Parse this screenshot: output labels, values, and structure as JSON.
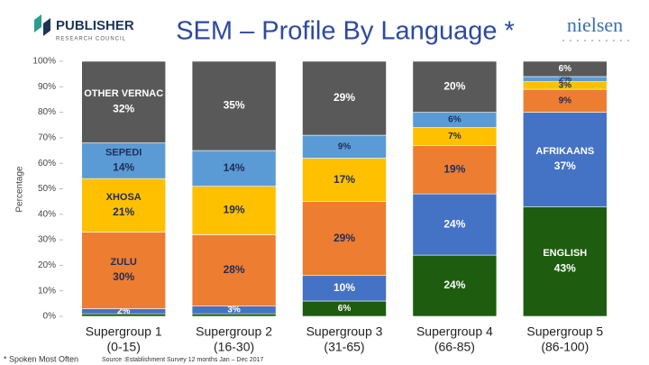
{
  "header": {
    "logo_name": "PUBLISHER",
    "logo_sub": "RESEARCH COUNCIL",
    "brand": "nielsen"
  },
  "chart_data": {
    "type": "stacked_bar",
    "title": "SEM – Profile By Language *",
    "y_label": "Percentage",
    "categories": [
      "Supergroup 1",
      "Supergroup 2",
      "Supergroup 3",
      "Supergroup 4",
      "Supergroup 5"
    ],
    "category_ranges": [
      "(0-15)",
      "(16-30)",
      "(31-65)",
      "(66-85)",
      "(86-100)"
    ],
    "ylim": [
      0,
      100
    ],
    "yticks": [
      {
        "value": 0,
        "label": "0%"
      },
      {
        "value": 10,
        "label": "10%"
      },
      {
        "value": 20,
        "label": "20%"
      },
      {
        "value": 30,
        "label": "30%"
      },
      {
        "value": 40,
        "label": "40%"
      },
      {
        "value": 50,
        "label": "50%"
      },
      {
        "value": 60,
        "label": "60%"
      },
      {
        "value": 70,
        "label": "70%"
      },
      {
        "value": 80,
        "label": "80%"
      },
      {
        "value": 90,
        "label": "90%"
      },
      {
        "value": 100,
        "label": "100%"
      }
    ],
    "series": [
      {
        "color": "#1e5c0f",
        "values": [
          1,
          1,
          6,
          24,
          43
        ],
        "value_labels": [
          null,
          null,
          "6%",
          "24%",
          "43%"
        ],
        "segment_labels": [
          null,
          null,
          null,
          null,
          "ENGLISH"
        ]
      },
      {
        "color": "#4472c4",
        "values": [
          2,
          3,
          10,
          24,
          37
        ],
        "value_labels": [
          "2%",
          "3%",
          "10%",
          "24%",
          "37%"
        ],
        "segment_labels": [
          null,
          null,
          null,
          null,
          "AFRIKAANS"
        ]
      },
      {
        "color": "#ed7d31",
        "values": [
          30,
          28,
          29,
          19,
          9
        ],
        "value_labels": [
          "30%",
          "28%",
          "29%",
          "19%",
          "9%"
        ],
        "segment_labels": [
          "ZULU",
          null,
          null,
          null,
          null
        ]
      },
      {
        "color": "#ffc000",
        "values": [
          21,
          19,
          17,
          7,
          3
        ],
        "value_labels": [
          "21%",
          "19%",
          "17%",
          "7%",
          "3%"
        ],
        "segment_labels": [
          "XHOSA",
          null,
          null,
          null,
          null
        ]
      },
      {
        "color": "#5b9bd5",
        "values": [
          14,
          14,
          9,
          6,
          2
        ],
        "value_labels": [
          "14%",
          "14%",
          "9%",
          "6%",
          "2%"
        ],
        "segment_labels": [
          "SEPEDI",
          null,
          null,
          null,
          null
        ]
      },
      {
        "color": "#595959",
        "values": [
          32,
          35,
          29,
          20,
          6
        ],
        "value_labels": [
          "32%",
          "35%",
          "29%",
          "20%",
          "6%"
        ],
        "segment_labels": [
          "OTHER VERNAC",
          null,
          null,
          null,
          null
        ]
      }
    ]
  },
  "footer": {
    "note": "* Spoken Most Often",
    "source": "Source :Establishment Survey 12 months Jan – Dec 2017"
  }
}
